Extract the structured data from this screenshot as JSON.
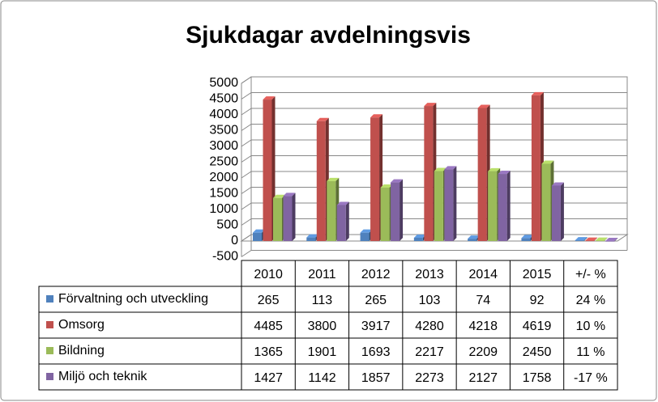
{
  "chart_data": {
    "type": "bar3d",
    "title": "Sjukdagar avdelningsvis",
    "categories": [
      "2010",
      "2011",
      "2012",
      "2013",
      "2014",
      "2015",
      "+/- %"
    ],
    "series": [
      {
        "name": "Förvaltning och utveckling",
        "color": "#4f81bd",
        "values": [
          265,
          113,
          265,
          103,
          74,
          92,
          24
        ],
        "value_labels": [
          "265",
          "113",
          "265",
          "103",
          "74",
          "92",
          "24 %"
        ]
      },
      {
        "name": "Omsorg",
        "color": "#c0504d",
        "values": [
          4485,
          3800,
          3917,
          4280,
          4218,
          4619,
          10
        ],
        "value_labels": [
          "4485",
          "3800",
          "3917",
          "4280",
          "4218",
          "4619",
          "10 %"
        ]
      },
      {
        "name": "Bildning",
        "color": "#9bbb59",
        "values": [
          1365,
          1901,
          1693,
          2217,
          2209,
          2450,
          11
        ],
        "value_labels": [
          "1365",
          "1901",
          "1693",
          "2217",
          "2209",
          "2450",
          "11 %"
        ]
      },
      {
        "name": "Miljö och teknik",
        "color": "#8064a2",
        "values": [
          1427,
          1142,
          1857,
          2273,
          2127,
          1758,
          -17
        ],
        "value_labels": [
          "1427",
          "1142",
          "1857",
          "2273",
          "2127",
          "1758",
          "-17 %"
        ]
      }
    ],
    "ylim": [
      -500,
      5000
    ],
    "yticks": [
      -500,
      0,
      500,
      1000,
      1500,
      2000,
      2500,
      3000,
      3500,
      4000,
      4500,
      5000
    ],
    "grid": true
  }
}
